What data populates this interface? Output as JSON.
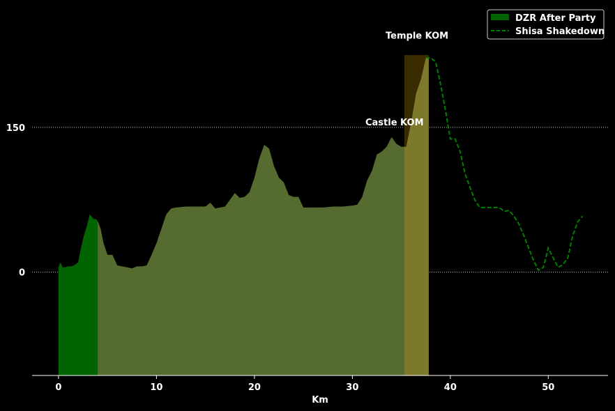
{
  "chart_data": {
    "type": "area",
    "xlabel": "Km",
    "ylabel": "",
    "xlim": [
      -2.7,
      56.1
    ],
    "ylim": [
      -107,
      282
    ],
    "xticks": [
      "0",
      "10",
      "20",
      "30",
      "40",
      "50"
    ],
    "yticks": [
      "0",
      "150"
    ],
    "grid": "horizontal dotted at y ticks",
    "legend_position": "top-right",
    "colors": {
      "background": "#000000",
      "dzr_fill": "#006400",
      "shisa_fill": "#556b2f",
      "shisa_line": "#008000",
      "kom_temple_fill": "#3a2a00",
      "kom_overlap_fill": "#7c7a2a"
    },
    "legend": [
      {
        "label": "DZR After Party",
        "style": "patch"
      },
      {
        "label": "Shisa Shakedown",
        "style": "dashed-line"
      }
    ],
    "annotations": [
      {
        "text": "Castle KOM",
        "x": 34.3,
        "y": 152
      },
      {
        "text": "Temple KOM",
        "x": 36.6,
        "y": 242
      }
    ],
    "kom_segments": [
      {
        "name": "Temple KOM",
        "x_start": 35.3,
        "x_end": 37.8,
        "top": 225
      }
    ],
    "series": [
      {
        "name": "DZR After Party",
        "kind": "filled-area",
        "x": [
          0,
          0.2,
          0.4,
          0.7,
          1.0,
          1.3,
          1.6,
          2.0,
          2.3,
          2.6,
          2.9,
          3.2,
          3.4,
          3.6,
          3.8,
          4.0
        ],
        "y": [
          5,
          10,
          5,
          5,
          6,
          6,
          7,
          10,
          25,
          38,
          48,
          60,
          57,
          55,
          55,
          53
        ]
      },
      {
        "name": "Shisa Shakedown",
        "kind": "dashed-line-with-fill",
        "x": [
          0,
          0.2,
          0.4,
          0.7,
          1.0,
          1.3,
          1.6,
          2.0,
          2.3,
          2.6,
          2.9,
          3.2,
          3.4,
          3.6,
          3.8,
          4.0,
          4.3,
          4.6,
          5.0,
          5.5,
          6.0,
          6.5,
          7.0,
          7.5,
          8.0,
          8.5,
          9.0,
          9.5,
          10.0,
          10.5,
          11.0,
          11.5,
          12.0,
          13.0,
          14.0,
          15.0,
          15.5,
          16.0,
          16.5,
          17.0,
          17.5,
          18.0,
          18.5,
          19.0,
          19.5,
          20.0,
          20.5,
          21.0,
          21.5,
          22.0,
          22.5,
          23.0,
          23.5,
          24.0,
          24.5,
          25.0,
          26.0,
          27.0,
          28.0,
          29.0,
          30.0,
          30.5,
          31.0,
          31.5,
          32.0,
          32.5,
          33.0,
          33.5,
          34.0,
          34.5,
          35.0,
          35.5,
          36.0,
          36.5,
          37.0,
          37.5,
          38.0,
          38.5,
          39.0,
          39.5,
          40.0,
          40.5,
          41.0,
          41.5,
          42.0,
          42.5,
          43.0,
          44.0,
          45.0,
          45.5,
          46.0,
          46.5,
          47.0,
          47.5,
          48.0,
          48.5,
          49.0,
          49.5,
          50.0,
          50.5,
          51.0,
          51.5,
          52.0,
          52.5,
          53.0,
          53.5
        ],
        "y": [
          5,
          10,
          5,
          5,
          6,
          6,
          7,
          10,
          25,
          38,
          48,
          60,
          57,
          55,
          55,
          53,
          45,
          30,
          18,
          18,
          7,
          6,
          5,
          4,
          6,
          6,
          7,
          18,
          30,
          45,
          60,
          66,
          67,
          68,
          68,
          68,
          72,
          66,
          67,
          68,
          75,
          82,
          77,
          78,
          83,
          98,
          118,
          132,
          128,
          110,
          98,
          93,
          80,
          78,
          78,
          67,
          67,
          67,
          68,
          68,
          69,
          70,
          78,
          95,
          105,
          122,
          125,
          130,
          140,
          133,
          130,
          130,
          155,
          185,
          200,
          222,
          222,
          218,
          195,
          168,
          138,
          138,
          125,
          102,
          88,
          75,
          67,
          67,
          67,
          63,
          64,
          58,
          50,
          38,
          25,
          12,
          2,
          5,
          25,
          15,
          5,
          8,
          15,
          38,
          52,
          58
        ]
      }
    ]
  }
}
